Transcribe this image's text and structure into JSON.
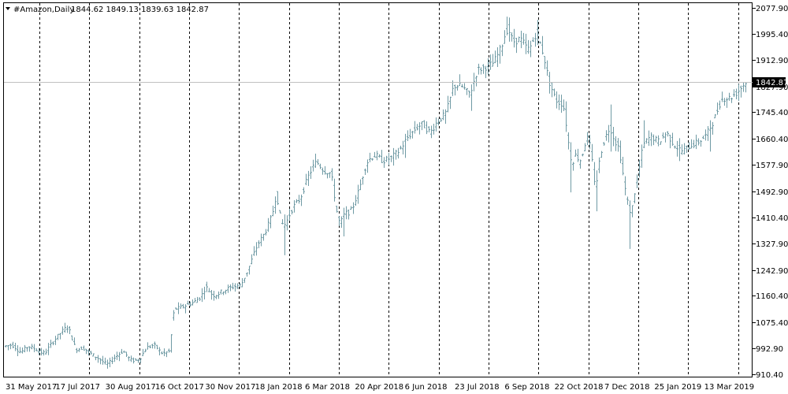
{
  "header": {
    "symbol": "#Amazon",
    "timeframe": "Daily",
    "symbol_timeframe": "#Amazon,Daily",
    "ohlc": "1844.62 1849.13 1839.63 1842.87"
  },
  "colors": {
    "background": "#ffffff",
    "frame": "#000000",
    "bar": "#6f9aa4",
    "last_price_line": "#c0c0c0",
    "last_price_bg": "#000000",
    "last_price_text": "#ffffff"
  },
  "chart_data": {
    "type": "ohlc",
    "instrument": "#Amazon",
    "timeframe": "Daily",
    "grid": "vertical-dashed",
    "last_price": 1842.87,
    "last_price_label": "1842.87",
    "y_ticks": [
      "2077.90",
      "1995.40",
      "1912.90",
      "1827.90",
      "1745.40",
      "1660.40",
      "1577.90",
      "1492.90",
      "1410.40",
      "1327.90",
      "1242.90",
      "1160.40",
      "1075.40",
      "992.90",
      "910.40"
    ],
    "x_ticks": [
      "31 May 2017",
      "17 Jul 2017",
      "30 Aug 2017",
      "16 Oct 2017",
      "30 Nov 2017",
      "18 Jan 2018",
      "6 Mar 2018",
      "20 Apr 2018",
      "6 Jun 2018",
      "23 Jul 2018",
      "6 Sep 2018",
      "22 Oct 2018",
      "7 Dec 2018",
      "25 Jan 2019",
      "13 Mar 2019"
    ],
    "ylim": [
      903,
      2093
    ],
    "price_path": [
      [
        0,
        1000
      ],
      [
        10,
        1005
      ],
      [
        20,
        980
      ],
      [
        30,
        1000
      ],
      [
        40,
        990
      ],
      [
        50,
        975
      ],
      [
        60,
        1010
      ],
      [
        70,
        1040
      ],
      [
        80,
        1065
      ],
      [
        85,
        1030
      ],
      [
        90,
        990
      ],
      [
        100,
        995
      ],
      [
        110,
        975
      ],
      [
        120,
        960
      ],
      [
        130,
        940
      ],
      [
        140,
        965
      ],
      [
        150,
        985
      ],
      [
        160,
        955
      ],
      [
        170,
        955
      ],
      [
        180,
        995
      ],
      [
        190,
        1005
      ],
      [
        200,
        975
      ],
      [
        210,
        985
      ],
      [
        214,
        1120
      ],
      [
        220,
        1120
      ],
      [
        240,
        1140
      ],
      [
        250,
        1160
      ],
      [
        255,
        1190
      ],
      [
        265,
        1160
      ],
      [
        280,
        1180
      ],
      [
        290,
        1190
      ],
      [
        300,
        1195
      ],
      [
        310,
        1250
      ],
      [
        320,
        1320
      ],
      [
        330,
        1360
      ],
      [
        340,
        1420
      ],
      [
        345,
        1490
      ],
      [
        350,
        1400
      ],
      [
        355,
        1380
      ],
      [
        365,
        1440
      ],
      [
        375,
        1470
      ],
      [
        385,
        1540
      ],
      [
        395,
        1590
      ],
      [
        405,
        1560
      ],
      [
        415,
        1550
      ],
      [
        420,
        1450
      ],
      [
        425,
        1380
      ],
      [
        430,
        1420
      ],
      [
        440,
        1430
      ],
      [
        450,
        1500
      ],
      [
        455,
        1550
      ],
      [
        460,
        1590
      ],
      [
        470,
        1610
      ],
      [
        480,
        1590
      ],
      [
        490,
        1600
      ],
      [
        500,
        1620
      ],
      [
        510,
        1660
      ],
      [
        520,
        1690
      ],
      [
        530,
        1710
      ],
      [
        540,
        1680
      ],
      [
        550,
        1720
      ],
      [
        560,
        1740
      ],
      [
        570,
        1830
      ],
      [
        580,
        1830
      ],
      [
        590,
        1800
      ],
      [
        600,
        1880
      ],
      [
        610,
        1890
      ],
      [
        620,
        1900
      ],
      [
        630,
        1950
      ],
      [
        638,
        2020
      ],
      [
        645,
        1970
      ],
      [
        655,
        1980
      ],
      [
        665,
        1940
      ],
      [
        675,
        2000
      ],
      [
        685,
        1920
      ],
      [
        690,
        1850
      ],
      [
        700,
        1780
      ],
      [
        710,
        1770
      ],
      [
        715,
        1650
      ],
      [
        720,
        1580
      ],
      [
        725,
        1620
      ],
      [
        730,
        1580
      ],
      [
        740,
        1680
      ],
      [
        745,
        1600
      ],
      [
        750,
        1500
      ],
      [
        755,
        1600
      ],
      [
        760,
        1650
      ],
      [
        768,
        1700
      ],
      [
        775,
        1650
      ],
      [
        780,
        1630
      ],
      [
        785,
        1540
      ],
      [
        790,
        1460
      ],
      [
        795,
        1420
      ],
      [
        800,
        1500
      ],
      [
        805,
        1560
      ],
      [
        810,
        1640
      ],
      [
        820,
        1670
      ],
      [
        830,
        1650
      ],
      [
        840,
        1680
      ],
      [
        850,
        1640
      ],
      [
        860,
        1620
      ],
      [
        870,
        1640
      ],
      [
        880,
        1650
      ],
      [
        890,
        1670
      ],
      [
        900,
        1720
      ],
      [
        910,
        1790
      ],
      [
        920,
        1790
      ],
      [
        930,
        1810
      ],
      [
        941,
        1843
      ]
    ],
    "spikes": [
      [
        355,
        1290,
        1420
      ],
      [
        430,
        1350,
        1420
      ],
      [
        508,
        1600,
        1660
      ],
      [
        593,
        1750,
        1810
      ],
      [
        638,
        2000,
        2050
      ],
      [
        677,
        1960,
        2040
      ],
      [
        718,
        1490,
        1650
      ],
      [
        750,
        1430,
        1560
      ],
      [
        768,
        1620,
        1770
      ],
      [
        793,
        1310,
        1440
      ],
      [
        810,
        1680,
        1720
      ],
      [
        855,
        1590,
        1660
      ],
      [
        895,
        1620,
        1720
      ]
    ]
  }
}
